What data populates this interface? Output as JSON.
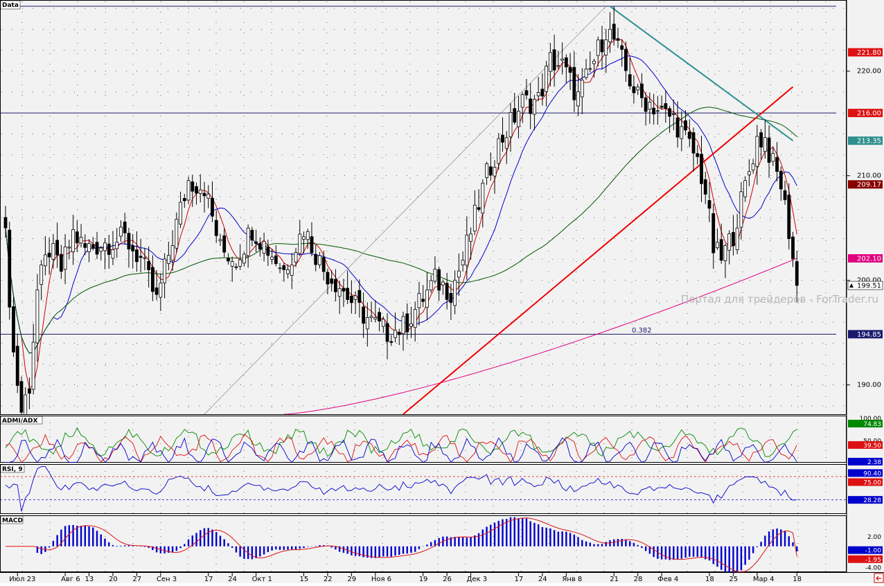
{
  "panels": {
    "main": {
      "label": "Data"
    },
    "adx": {
      "label": "ADMI/ADX"
    },
    "rsi": {
      "label": "RSI, 9"
    },
    "macd": {
      "label": "MACD"
    }
  },
  "watermark": "Портал для трейдеров - ForTrader.ru",
  "fib_label": "0.382",
  "x_labels": [
    "Июл 23",
    "Авг 6",
    "13",
    "20",
    "27",
    "Сен 3",
    "17",
    "24",
    "Окт 1",
    "15",
    "22",
    "29",
    "Ноя 6",
    "19",
    "26",
    "Дек 3",
    "17",
    "24",
    "Янв 8",
    "21",
    "28",
    "Фев 4",
    "18",
    "25",
    "Мар 4",
    "18"
  ],
  "colors": {
    "background": "#f2f2f2",
    "bull": "#ffffff",
    "bear": "#000000",
    "ma_fast": "#cc0000",
    "ma_mid": "#0000cc",
    "ma_slow": "#005500",
    "ma_long": "#e0007f",
    "trendline_up": "#ee0000",
    "trendline_down": "#2f8f8f"
  },
  "chart_data": [
    {
      "type": "candlestick",
      "panel": "main",
      "ylim": [
        187.2,
        226.8
      ],
      "y_ticks": [
        190,
        200,
        210,
        220
      ],
      "y_tick_labels": [
        "190.00",
        "200.00",
        "210.00",
        "220.00"
      ],
      "last_price": 199.51,
      "last_price_label": "199.51",
      "horizontal_levels": [
        226.2,
        216.0,
        194.85
      ],
      "price_badges": [
        {
          "label": "221.80",
          "value": 221.8,
          "color": "#dd1111",
          "text_color": "#ffffff"
        },
        {
          "label": "216.00",
          "value": 216.0,
          "color": "#dd1111",
          "text_color": "#ffffff"
        },
        {
          "label": "213.35",
          "value": 213.35,
          "color": "#2f8f8f",
          "text_color": "#ffffff"
        },
        {
          "label": "209.17",
          "value": 209.17,
          "color": "#880000",
          "text_color": "#ffffff"
        },
        {
          "label": "202.10",
          "value": 202.1,
          "color": "#e0007f",
          "text_color": "#ffffff"
        },
        {
          "label": "194.85",
          "value": 194.85,
          "color": "#1a1a6e",
          "text_color": "#ffffff"
        }
      ],
      "trendlines": [
        {
          "name": "support",
          "from": [
            100,
            187.2
          ],
          "to": [
            198,
            218.5
          ],
          "color": "#ee0000"
        },
        {
          "name": "resistance",
          "from": [
            152,
            226.2
          ],
          "to": [
            198,
            213.35
          ],
          "color": "#2f8f8f"
        },
        {
          "name": "fan",
          "from": [
            50,
            187.2
          ],
          "to": [
            151,
            226.2
          ],
          "color": "#888888"
        }
      ],
      "moving_average_periods": [
        5,
        13,
        60,
        200
      ]
    },
    {
      "type": "line",
      "panel": "adx",
      "ylim": [
        0,
        105
      ],
      "y_ticks": [
        100,
        50
      ],
      "y_tick_labels": [
        "100.00",
        "50.00"
      ],
      "series": [
        {
          "value": 74.83,
          "label": "74.83",
          "color": "#008800"
        },
        {
          "value": 39.5,
          "label": "39.50",
          "color": "#dd1111"
        },
        {
          "value": 2.38,
          "label": "2.38",
          "color": "#0000cc"
        }
      ]
    },
    {
      "type": "line",
      "panel": "rsi",
      "ylim": [
        0,
        100
      ],
      "levels": [
        75,
        28.28
      ],
      "series": [
        {
          "value": 90.4,
          "label": "90.40",
          "color": "#0000cc"
        },
        {
          "value": 75.0,
          "label": "75.00",
          "color": "#dd1111"
        },
        {
          "value": 28.28,
          "label": "28.28",
          "color": "#0000cc"
        }
      ]
    },
    {
      "type": "bar",
      "panel": "macd",
      "ylim": [
        -5,
        6
      ],
      "y_ticks": [
        2,
        -4
      ],
      "y_tick_labels": [
        "2.00",
        "-4.00"
      ],
      "series": [
        {
          "value": -1.0,
          "label": "-1.00",
          "color": "#0000cc"
        },
        {
          "value": -1.95,
          "label": "-1.95",
          "color": "#dd1111"
        }
      ]
    }
  ]
}
